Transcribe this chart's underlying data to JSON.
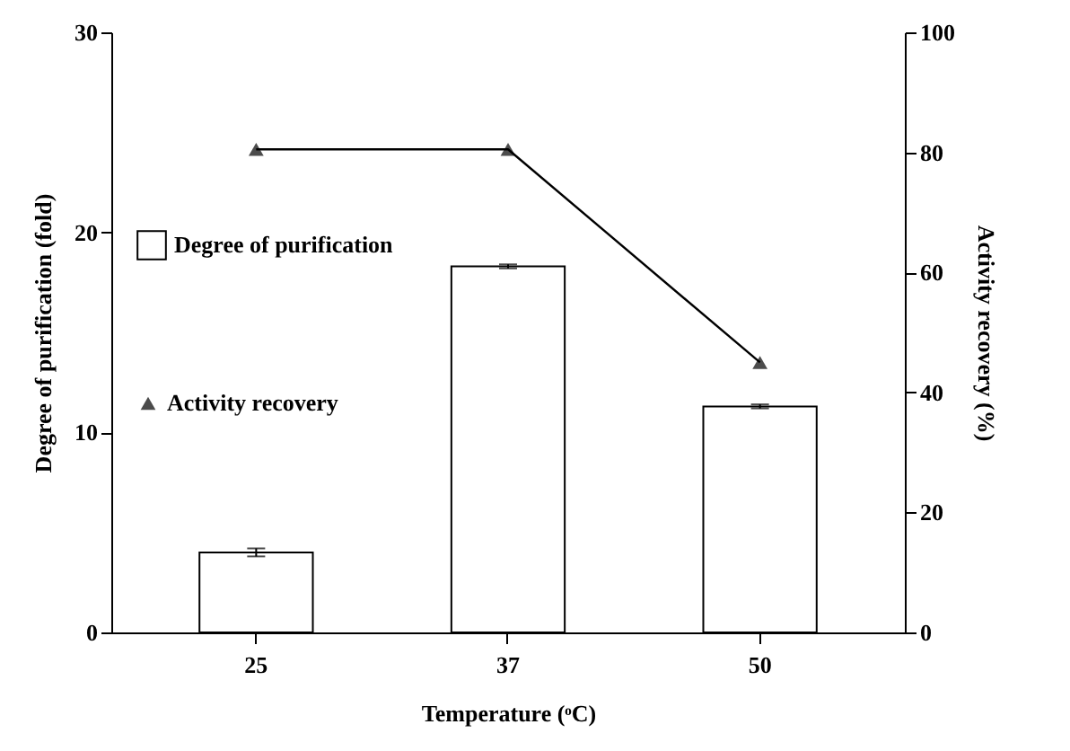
{
  "chart_data": {
    "type": "bar",
    "xlabel": "Temperature (ᵒC)",
    "ylabel": "Degree of purification (fold)",
    "y2label": "Activity recovery (%)",
    "categories": [
      "25",
      "37",
      "50"
    ],
    "series": [
      {
        "name": "Degree of purification",
        "color": "#ffffff",
        "values": [
          4.0,
          18.3,
          11.3
        ],
        "errors": [
          0.2,
          0.1,
          0.1
        ]
      },
      {
        "name": "Activity recovery",
        "type": "line",
        "axis": "y2",
        "color": "#000000",
        "values": [
          80.5,
          80.5,
          45
        ],
        "marker": "triangle",
        "line_style": "solid"
      }
    ],
    "ylim": [
      0,
      30
    ],
    "yticks": [
      0,
      10,
      20,
      30
    ],
    "y2lim": [
      0,
      100
    ],
    "y2ticks": [
      0,
      20,
      40,
      60,
      80,
      100
    ],
    "legend": "left",
    "grid": false
  }
}
